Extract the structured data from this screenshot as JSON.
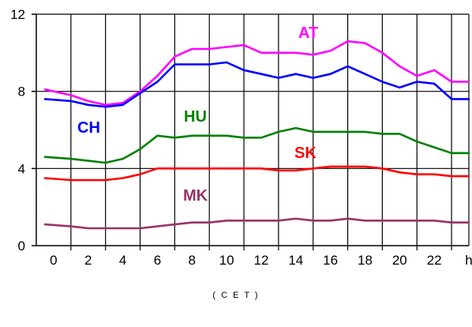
{
  "chart_data": {
    "type": "line",
    "title": "",
    "xlabel": "( C E T )",
    "ylabel": "",
    "x_tick_labels": [
      "0",
      "2",
      "4",
      "6",
      "8",
      "10",
      "12",
      "14",
      "16",
      "18",
      "20",
      "22",
      "h"
    ],
    "x_tick_values": [
      0,
      2,
      4,
      6,
      8,
      10,
      12,
      14,
      16,
      18,
      20,
      22,
      24
    ],
    "ylim": [
      0,
      12
    ],
    "y_ticks": [
      0,
      4,
      8,
      12
    ],
    "xlim": [
      -1,
      24
    ],
    "grid": {
      "vertical": true,
      "horizontal": true
    },
    "legend": "inline labels",
    "x": [
      -0.5,
      1,
      2,
      3,
      4,
      5,
      6,
      7,
      8,
      9,
      10,
      11,
      12,
      13,
      14,
      15,
      16,
      17,
      18,
      19,
      20,
      21,
      22,
      23,
      24
    ],
    "series": [
      {
        "name": "AT",
        "color": "#ff00ff",
        "values": [
          8.1,
          7.8,
          7.5,
          7.3,
          7.4,
          8.0,
          8.8,
          9.8,
          10.2,
          10.2,
          10.3,
          10.4,
          10.0,
          10.0,
          10.0,
          9.9,
          10.1,
          10.6,
          10.5,
          10.0,
          9.3,
          8.8,
          9.1,
          8.5,
          8.5
        ]
      },
      {
        "name": "CH",
        "color": "#0000ff",
        "values": [
          7.6,
          7.5,
          7.3,
          7.2,
          7.3,
          7.9,
          8.5,
          9.4,
          9.4,
          9.4,
          9.5,
          9.1,
          8.9,
          8.7,
          8.9,
          8.7,
          8.9,
          9.3,
          8.9,
          8.5,
          8.2,
          8.5,
          8.4,
          7.6,
          7.6
        ]
      },
      {
        "name": "HU",
        "color": "#008000",
        "values": [
          4.6,
          4.5,
          4.4,
          4.3,
          4.5,
          5.0,
          5.7,
          5.6,
          5.7,
          5.7,
          5.7,
          5.6,
          5.6,
          5.9,
          6.1,
          5.9,
          5.9,
          5.9,
          5.9,
          5.8,
          5.8,
          5.4,
          5.1,
          4.8,
          4.8
        ]
      },
      {
        "name": "SK",
        "color": "#ff0000",
        "values": [
          3.5,
          3.4,
          3.4,
          3.4,
          3.5,
          3.7,
          4.0,
          4.0,
          4.0,
          4.0,
          4.0,
          4.0,
          4.0,
          3.9,
          3.9,
          4.0,
          4.1,
          4.1,
          4.1,
          4.0,
          3.8,
          3.7,
          3.7,
          3.6,
          3.6
        ]
      },
      {
        "name": "MK",
        "color": "#993366",
        "values": [
          1.1,
          1.0,
          0.9,
          0.9,
          0.9,
          0.9,
          1.0,
          1.1,
          1.2,
          1.2,
          1.3,
          1.3,
          1.3,
          1.3,
          1.4,
          1.3,
          1.3,
          1.4,
          1.3,
          1.3,
          1.3,
          1.3,
          1.3,
          1.2,
          1.2
        ]
      }
    ]
  }
}
